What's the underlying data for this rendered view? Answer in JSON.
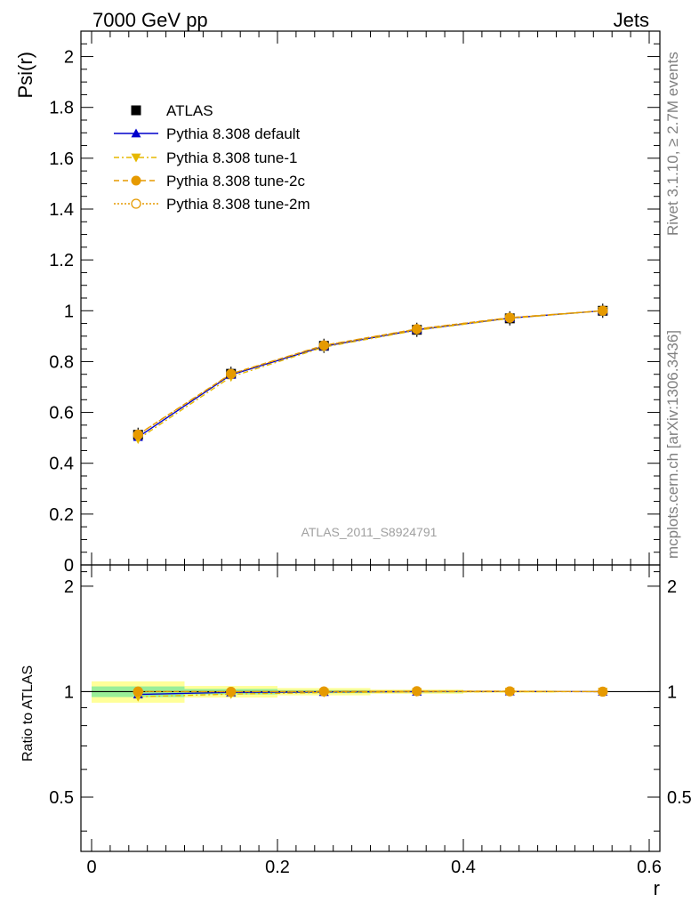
{
  "header": {
    "left": "7000 GeV pp",
    "right": "Jets"
  },
  "side_notes": {
    "top": "Rivet 3.1.10, ≥ 2.7M events",
    "bottom": "mcplots.cern.ch [arXiv:1306.3436]"
  },
  "watermark": "ATLAS_2011_S8924791",
  "colors": {
    "data": "#000000",
    "default": "#0000cc",
    "tune1": "#e6b800",
    "tune2c": "#e69a00",
    "tune2m": "#e69a00",
    "band_inner": "#99ee99",
    "band_outer": "#ffff99"
  },
  "chart_data": [
    {
      "type": "line",
      "panel": "main",
      "ylabel": "Psi(r)",
      "xlim": [
        0,
        0.6
      ],
      "ylim": [
        0,
        2.1
      ],
      "y_ticks": [
        "0",
        "0.2",
        "0.4",
        "0.6",
        "0.8",
        "1",
        "1.2",
        "1.4",
        "1.6",
        "1.8",
        "2"
      ],
      "y_tick_values": [
        0,
        0.2,
        0.4,
        0.6,
        0.8,
        1,
        1.2,
        1.4,
        1.6,
        1.8,
        2
      ],
      "x": [
        0.05,
        0.15,
        0.25,
        0.35,
        0.45,
        0.55
      ],
      "legend": "top-left",
      "series": [
        {
          "name": "ATLAS",
          "key": "data",
          "values": [
            0.512,
            0.752,
            0.862,
            0.925,
            0.97,
            1.0
          ]
        },
        {
          "name": "Pythia 8.308 default",
          "key": "default",
          "values": [
            0.503,
            0.748,
            0.86,
            0.925,
            0.971,
            1.0
          ]
        },
        {
          "name": "Pythia 8.308 tune-1",
          "key": "tune1",
          "values": [
            0.495,
            0.74,
            0.857,
            0.923,
            0.97,
            1.0
          ]
        },
        {
          "name": "Pythia 8.308 tune-2c",
          "key": "tune2c",
          "values": [
            0.513,
            0.752,
            0.864,
            0.928,
            0.973,
            1.0
          ]
        },
        {
          "name": "Pythia 8.308 tune-2m",
          "key": "tune2m",
          "values": [
            0.512,
            0.751,
            0.863,
            0.928,
            0.972,
            1.0
          ]
        }
      ]
    },
    {
      "type": "line",
      "panel": "ratio",
      "ylabel": "Ratio to ATLAS",
      "xlabel": "r",
      "xlim": [
        0,
        0.6
      ],
      "ylim": [
        0.35,
        2.3
      ],
      "y_ticks": [
        "0.5",
        "1",
        "2"
      ],
      "y_tick_values": [
        0.5,
        1,
        2
      ],
      "x_ticks": [
        "0",
        "0.2",
        "0.4",
        "0.6"
      ],
      "x_tick_values": [
        0,
        0.2,
        0.4,
        0.6
      ],
      "x": [
        0.05,
        0.15,
        0.25,
        0.35,
        0.45,
        0.55
      ],
      "bins": [
        [
          0,
          0.1
        ],
        [
          0.1,
          0.2
        ],
        [
          0.2,
          0.3
        ],
        [
          0.3,
          0.4
        ],
        [
          0.4,
          0.5
        ],
        [
          0.5,
          0.6
        ]
      ],
      "band_inner": [
        [
          0.965,
          1.035
        ],
        [
          0.982,
          1.018
        ],
        [
          0.99,
          1.01
        ],
        [
          0.994,
          1.006
        ],
        [
          0.997,
          1.003
        ],
        [
          0.999,
          1.001
        ]
      ],
      "band_outer": [
        [
          0.93,
          1.07
        ],
        [
          0.962,
          1.038
        ],
        [
          0.976,
          1.024
        ],
        [
          0.986,
          1.014
        ],
        [
          0.993,
          1.007
        ],
        [
          0.998,
          1.002
        ]
      ],
      "series": [
        {
          "name": "Pythia 8.308 default",
          "key": "default",
          "values": [
            0.982,
            0.995,
            0.998,
            1.0,
            1.001,
            1.0
          ]
        },
        {
          "name": "Pythia 8.308 tune-1",
          "key": "tune1",
          "values": [
            0.967,
            0.984,
            0.994,
            0.998,
            1.0,
            1.0
          ]
        },
        {
          "name": "Pythia 8.308 tune-2c",
          "key": "tune2c",
          "values": [
            1.002,
            1.0,
            1.002,
            1.003,
            1.003,
            1.0
          ]
        },
        {
          "name": "Pythia 8.308 tune-2m",
          "key": "tune2m",
          "values": [
            1.0,
            0.999,
            1.001,
            1.003,
            1.002,
            1.0
          ]
        }
      ]
    }
  ]
}
